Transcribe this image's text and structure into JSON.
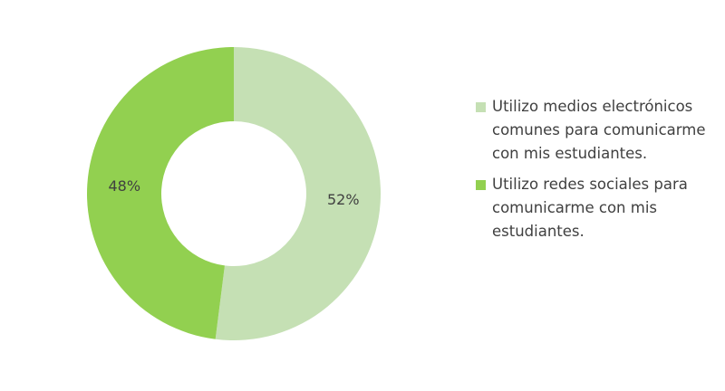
{
  "chart_data": {
    "type": "pie",
    "donut": true,
    "categories": [
      "Utilizo medios electrónicos comunes para comunicarme con mis estudiantes.",
      "Utilizo redes sociales para comunicarme con mis estudiantes."
    ],
    "values": [
      52,
      48
    ],
    "value_labels": [
      "52%",
      "48%"
    ],
    "colors": [
      "#c5e0b4",
      "#92d050"
    ]
  }
}
